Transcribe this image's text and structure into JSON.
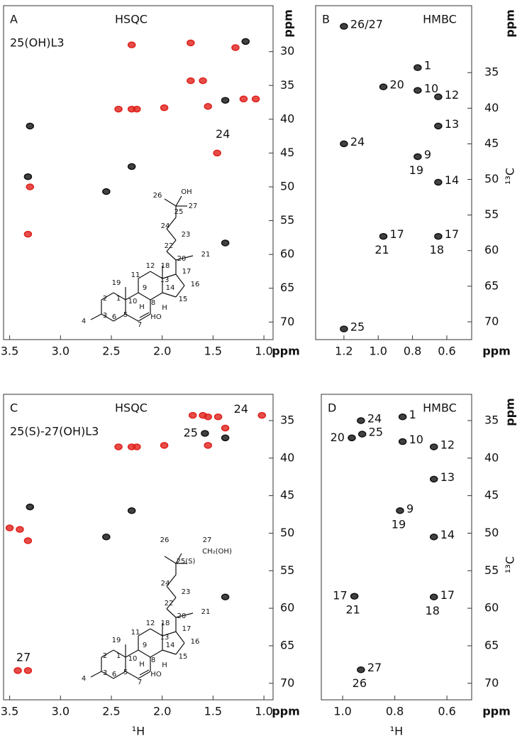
{
  "chart_data": [
    {
      "type": "scatter",
      "panel": "A",
      "title": "HSQC",
      "subtitle": "25(OH)L3",
      "xunit": "ppm",
      "yunit": "ppm",
      "xlim": [
        3.56,
        0.91
      ],
      "ylim": [
        23.2,
        72.6
      ],
      "xticks": [
        3.5,
        {
          "value": 3,
          "label": "3.0"
        },
        2.5,
        {
          "value": 2,
          "label": "2.0"
        },
        1.5,
        {
          "value": 1,
          "label": "1.0"
        }
      ],
      "yticks": [
        30,
        35,
        40,
        45,
        50,
        55,
        60,
        65,
        70
      ],
      "series": [
        {
          "color": "#e0201b",
          "x": [
            2.3,
            1.72,
            1.28,
            1.72,
            1.6,
            2.43,
            2.3,
            2.25,
            1.98,
            1.55,
            1.2,
            1.08,
            1.46,
            3.3,
            3.32
          ],
          "y": [
            29,
            28.7,
            29.4,
            34.3,
            34.3,
            38.5,
            38.5,
            38.5,
            38.3,
            38.1,
            37,
            37,
            45,
            50,
            57
          ],
          "labels": [
            null,
            null,
            null,
            null,
            null,
            null,
            null,
            null,
            null,
            null,
            null,
            null,
            "24",
            null,
            null
          ]
        },
        {
          "color": "#111111",
          "x": [
            1.18,
            1.38,
            3.32,
            2.3,
            2.55,
            1.38,
            3.3
          ],
          "y": [
            28.5,
            37.2,
            48.5,
            47,
            50.7,
            58.3,
            41
          ]
        }
      ],
      "structure_labels": [
        "26",
        "OH",
        "27",
        "25",
        "24",
        "23",
        "22",
        "20",
        "21",
        "12",
        "18",
        "17",
        "13",
        "16",
        "11",
        "14",
        "19",
        "9",
        "1",
        "10",
        "15",
        "2",
        "8",
        "H",
        "H",
        "3",
        "5",
        "HO",
        "4",
        "6",
        "7"
      ]
    },
    {
      "type": "scatter",
      "panel": "B",
      "title": "HMBC",
      "xunit": "ppm",
      "yunit": "ppm",
      "ylabel": "¹³C",
      "xlim": [
        1.365,
        0.455
      ],
      "ylim": [
        25.6,
        72.5
      ],
      "xticks": [
        1.2,
        {
          "value": 1,
          "label": "1.0"
        },
        0.8,
        0.6
      ],
      "yticks": [
        35,
        40,
        45,
        50,
        55,
        60,
        65,
        70
      ],
      "series": [
        {
          "color": "#111111",
          "x": [
            1.2,
            1.2,
            1.2,
            0.97,
            0.97,
            0.77,
            0.77,
            0.77,
            0.65,
            0.65,
            0.65,
            0.65
          ],
          "y": [
            28.5,
            45,
            71,
            37,
            58,
            34.3,
            37.5,
            46.8,
            38.4,
            42.5,
            50.4,
            58
          ],
          "labels": [
            "26/27",
            "24",
            "25",
            "20",
            "17",
            "1",
            "10",
            "9",
            "12",
            "13",
            "14",
            "17"
          ],
          "sublabels": [
            null,
            null,
            null,
            null,
            "21",
            null,
            null,
            "19",
            null,
            null,
            null,
            "18"
          ]
        }
      ]
    },
    {
      "type": "scatter",
      "panel": "C",
      "title": "HSQC",
      "subtitle": "25(S)-27(OH)L3",
      "xunit": "ppm",
      "xtitle": "¹H",
      "xlim": [
        3.56,
        0.91
      ],
      "ylim": [
        31.5,
        72.2
      ],
      "xticks": [
        3.5,
        {
          "value": 3,
          "label": "3.0"
        },
        2.5,
        {
          "value": 2,
          "label": "2.0"
        },
        1.5,
        {
          "value": 1,
          "label": "1.0"
        }
      ],
      "yticks": [
        35,
        40,
        45,
        50,
        55,
        60,
        65,
        70
      ],
      "series": [
        {
          "color": "#e0201b",
          "x": [
            1.7,
            1.6,
            1.55,
            1.45,
            1.02,
            2.43,
            2.3,
            2.25,
            1.98,
            1.55,
            1.38,
            3.5,
            3.4,
            3.32,
            3.42,
            3.32
          ],
          "y": [
            34.3,
            34.3,
            34.5,
            34.5,
            34.3,
            38.5,
            38.5,
            38.5,
            38.3,
            38.3,
            36,
            49.3,
            49.5,
            51,
            68.3,
            68.3
          ],
          "labels": [
            null,
            null,
            null,
            "24",
            null,
            null,
            null,
            null,
            null,
            null,
            null,
            null,
            null,
            null,
            "27",
            null
          ]
        },
        {
          "color": "#111111",
          "x": [
            1.58,
            1.38,
            3.3,
            2.3,
            2.55,
            1.38
          ],
          "y": [
            36.7,
            37.3,
            46.5,
            47,
            50.5,
            58.5
          ],
          "labels": [
            "25",
            null,
            null,
            null,
            null,
            null
          ]
        }
      ],
      "structure_labels": [
        "26",
        "27",
        "CH₂(OH)",
        "25(S)",
        "24",
        "23",
        "22",
        "20",
        "21",
        "12",
        "18",
        "17",
        "13",
        "16",
        "11",
        "14",
        "19",
        "9",
        "1",
        "10",
        "15",
        "2",
        "8",
        "H",
        "H",
        "3",
        "5",
        "HO",
        "4",
        "6",
        "7"
      ]
    },
    {
      "type": "scatter",
      "panel": "D",
      "title": "HMBC",
      "xunit": "ppm",
      "yunit": "ppm",
      "ylabel": "¹³C",
      "xtitle": "¹H",
      "xlim": [
        1.082,
        0.505
      ],
      "ylim": [
        31.5,
        72.2
      ],
      "xticks": [
        {
          "value": 1,
          "label": "1.0"
        },
        0.8,
        0.6
      ],
      "yticks": [
        35,
        40,
        45,
        50,
        55,
        60,
        65,
        70
      ],
      "series": [
        {
          "color": "#111111",
          "x": [
            0.93,
            0.77,
            0.965,
            0.925,
            0.77,
            0.65,
            0.65,
            0.78,
            0.65,
            0.955,
            0.65,
            0.93
          ],
          "y": [
            35,
            34.5,
            37.3,
            36.8,
            37.8,
            38.5,
            42.8,
            47,
            50.5,
            58.4,
            58.5,
            68.2
          ],
          "labels": [
            "24",
            "1",
            "20",
            "25",
            "10",
            "12",
            "13",
            "9",
            "14",
            "17",
            "17",
            "27"
          ],
          "sublabels": [
            null,
            null,
            null,
            null,
            null,
            null,
            null,
            "19",
            null,
            "21",
            "18",
            "26"
          ]
        }
      ]
    }
  ]
}
